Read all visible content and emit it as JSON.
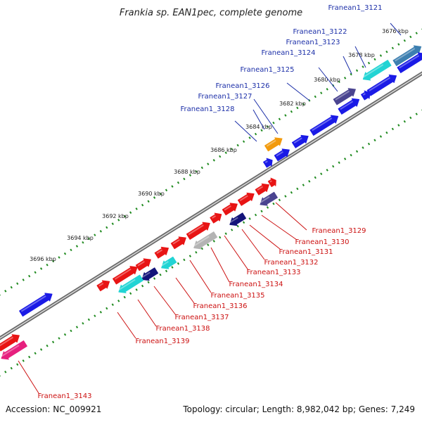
{
  "title": "Frankia sp. EAN1pec, complete genome",
  "footer": {
    "accession": "Accession: NC_009921",
    "stats": "Topology: circular; Length: 8,982,042 bp; Genes: 7,249"
  },
  "ticks": [
    {
      "label": "3676 kbp"
    },
    {
      "label": "3678 kbp"
    },
    {
      "label": "3680 kbp"
    },
    {
      "label": "3682 kbp"
    },
    {
      "label": "3684 kbp"
    },
    {
      "label": "3686 kbp"
    },
    {
      "label": "3688 kbp"
    },
    {
      "label": "3690 kbp"
    },
    {
      "label": "3692 kbp"
    },
    {
      "label": "3694 kbp"
    },
    {
      "label": "3696 kbp"
    }
  ],
  "top_labels": [
    "Franean1_3121",
    "Franean1_3122",
    "Franean1_3123",
    "Franean1_3124",
    "Franean1_3125",
    "Franean1_3126",
    "Franean1_3127",
    "Franean1_3128"
  ],
  "bottom_labels": [
    "Franean1_3129",
    "Franean1_3130",
    "Franean1_3131",
    "Franean1_3132",
    "Franean1_3133",
    "Franean1_3134",
    "Franean1_3135",
    "Franean1_3136",
    "Franean1_3137",
    "Franean1_3138",
    "Franean1_3139",
    "Franean1_3143"
  ],
  "colors": {
    "blue": "#1a1ae6",
    "dark_blue": "#14147a",
    "slate": "#4a4490",
    "steel": "#3d7fb0",
    "cyan": "#22d4d4",
    "orange": "#f29a0c",
    "red": "#e81414",
    "pink": "#e6207e",
    "gray": "#b4b4b4",
    "top_label": "#1c2fa8",
    "bottom_label": "#cc1010",
    "tick_dot": "#1f8a1f"
  }
}
